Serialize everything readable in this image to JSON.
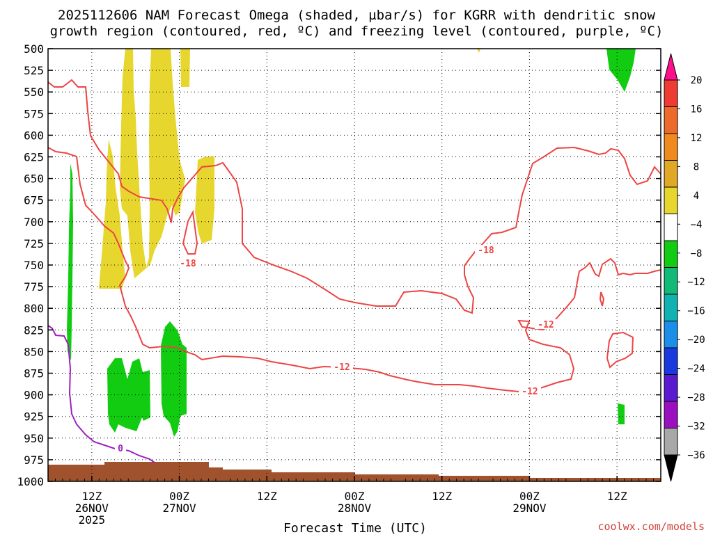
{
  "title_line1": "2025112606 NAM Forecast Omega (shaded, µbar/s) for KGRR with dendritic snow",
  "title_line2": "growth region (contoured, red, ºC) and freezing level (contoured, purple, ºC)",
  "credit": "coolwx.com/models",
  "chart_data": {
    "type": "heatmap",
    "xlabel": "Forecast Time (UTC)",
    "ylabel": "",
    "x_range_hours": [
      0,
      84
    ],
    "ylim": [
      1000,
      500
    ],
    "y_ticks": [
      500,
      525,
      550,
      575,
      600,
      625,
      650,
      675,
      700,
      725,
      750,
      775,
      800,
      825,
      850,
      875,
      900,
      925,
      950,
      975,
      1000
    ],
    "x_ticks": [
      {
        "hour": 6,
        "time": "12Z",
        "date": "26NOV",
        "year": "2025"
      },
      {
        "hour": 18,
        "time": "00Z",
        "date": "27NOV",
        "year": ""
      },
      {
        "hour": 30,
        "time": "12Z",
        "date": "",
        "year": ""
      },
      {
        "hour": 42,
        "time": "00Z",
        "date": "28NOV",
        "year": ""
      },
      {
        "hour": 54,
        "time": "12Z",
        "date": "",
        "year": ""
      },
      {
        "hour": 66,
        "time": "00Z",
        "date": "29NOV",
        "year": ""
      },
      {
        "hour": 78,
        "time": "12Z",
        "date": "",
        "year": ""
      }
    ],
    "grid": true,
    "colorbar": {
      "labels": [
        "20",
        "16",
        "12",
        "8",
        "4",
        "−4",
        "−8",
        "−12",
        "−16",
        "−20",
        "−24",
        "−28",
        "−32",
        "−36"
      ],
      "colors": [
        "#ff0f8c",
        "#f03a34",
        "#ee6a2a",
        "#f08a1e",
        "#e0a824",
        "#e6d62e",
        "#ffffff",
        "#11cc11",
        "#11bb77",
        "#11b2b2",
        "#1a8ee8",
        "#1a3ae0",
        "#5a1ad0",
        "#9a10c0",
        "#a8a8a8",
        "#000000"
      ]
    },
    "contours": [
      {
        "level": "-18",
        "color": "#ee4444"
      },
      {
        "level": "-12",
        "color": "#ee4444"
      },
      {
        "level": "0",
        "color": "#a020c0"
      }
    ],
    "shaded_regions": [
      {
        "value_range": [
          4,
          8
        ],
        "color": "#e6d62e"
      },
      {
        "value_range": [
          -8,
          -4
        ],
        "color": "#11cc11"
      }
    ],
    "terrain_color": "#a0522d",
    "surface_pressure": 972
  }
}
